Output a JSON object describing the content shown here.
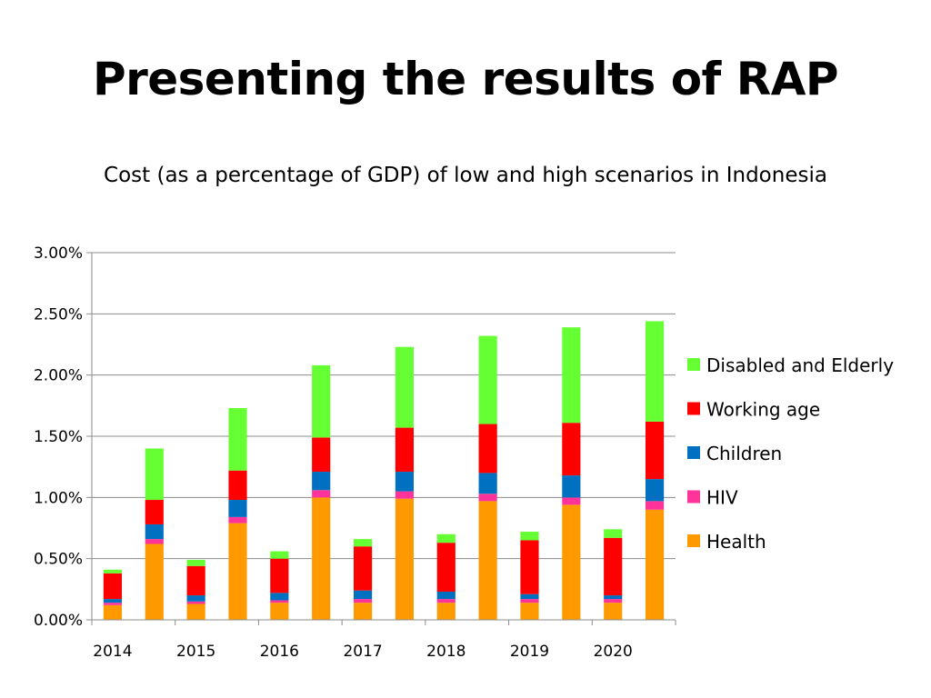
{
  "slide": {
    "title": "Presenting the results of RAP",
    "subtitle": "Cost (as a percentage of GDP) of low and high scenarios in Indonesia"
  },
  "chart_data": {
    "type": "bar",
    "stacked": true,
    "title": "",
    "xlabel": "",
    "ylabel": "",
    "ylim": [
      0,
      3.0
    ],
    "y_ticks": [
      "0.00%",
      "0.50%",
      "1.00%",
      "1.50%",
      "2.00%",
      "2.50%",
      "3.00%"
    ],
    "grid": true,
    "legend_position": "right",
    "year_labels": [
      "2014",
      "2015",
      "2016",
      "2017",
      "2018",
      "2019",
      "2020"
    ],
    "categories": [
      "2014 low",
      "2014 high",
      "2015 low",
      "2015 high",
      "2016 low",
      "2016 high",
      "2017 low",
      "2017 high",
      "2018 low",
      "2018 high",
      "2019 low",
      "2019 high",
      "2020 low",
      "2020 high"
    ],
    "series": [
      {
        "name": "Health",
        "color": "#FF9900",
        "values": [
          0.12,
          0.62,
          0.13,
          0.79,
          0.14,
          1.0,
          0.14,
          0.99,
          0.14,
          0.97,
          0.14,
          0.94,
          0.14,
          0.9
        ]
      },
      {
        "name": "HIV",
        "color": "#FF3399",
        "values": [
          0.02,
          0.04,
          0.02,
          0.05,
          0.02,
          0.06,
          0.03,
          0.06,
          0.03,
          0.06,
          0.03,
          0.06,
          0.03,
          0.07
        ]
      },
      {
        "name": "Children",
        "color": "#0070C0",
        "values": [
          0.03,
          0.12,
          0.05,
          0.14,
          0.06,
          0.15,
          0.07,
          0.16,
          0.06,
          0.17,
          0.04,
          0.18,
          0.03,
          0.18
        ]
      },
      {
        "name": "Working age",
        "color": "#FF0000",
        "values": [
          0.21,
          0.2,
          0.24,
          0.24,
          0.28,
          0.28,
          0.36,
          0.36,
          0.4,
          0.4,
          0.44,
          0.43,
          0.47,
          0.47
        ]
      },
      {
        "name": "Disabled and Elderly",
        "color": "#66FF33",
        "values": [
          0.03,
          0.42,
          0.05,
          0.51,
          0.06,
          0.59,
          0.06,
          0.66,
          0.07,
          0.72,
          0.07,
          0.78,
          0.07,
          0.82
        ]
      }
    ],
    "legend_order": [
      "Disabled and Elderly",
      "Working age",
      "Children",
      "HIV",
      "Health"
    ]
  }
}
